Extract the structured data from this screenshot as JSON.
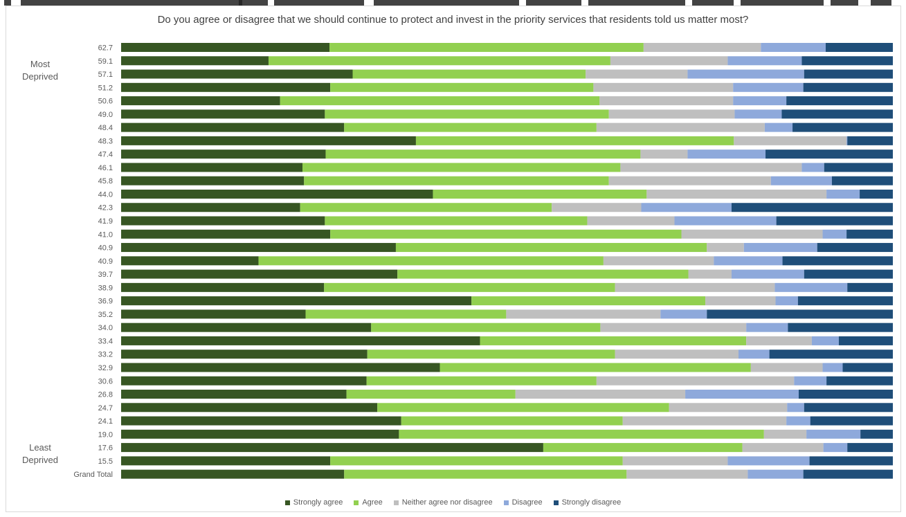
{
  "chart_data": {
    "type": "bar",
    "orientation": "horizontal",
    "stacked": "100%",
    "title": "Do you agree or disagree that we should continue to protect and invest in the priority services that residents told us matter most?",
    "side_labels": {
      "top": "Most Deprived",
      "bottom": "Least Deprived"
    },
    "categories": [
      "62.7",
      "59.1",
      "57.1",
      "51.2",
      "50.6",
      "49.0",
      "48.4",
      "48.3",
      "47.4",
      "46.1",
      "45.8",
      "44.0",
      "42.3",
      "41.9",
      "41.0",
      "40.9",
      "40.9",
      "39.7",
      "38.9",
      "36.9",
      "35.2",
      "34.0",
      "33.4",
      "33.2",
      "32.9",
      "30.6",
      "26.8",
      "24.7",
      "24.1",
      "19.0",
      "17.6",
      "15.5",
      "Grand Total"
    ],
    "series": [
      {
        "name": "Strongly agree",
        "color": "#375623",
        "values": [
          27.0,
          19.1,
          30.0,
          27.1,
          20.6,
          26.4,
          28.9,
          38.2,
          26.5,
          23.5,
          23.7,
          40.4,
          23.2,
          26.4,
          27.1,
          35.6,
          17.8,
          35.8,
          26.3,
          45.4,
          23.9,
          32.4,
          46.5,
          31.9,
          41.3,
          31.8,
          29.2,
          33.2,
          36.3,
          36.0,
          54.7,
          27.1,
          28.9
        ]
      },
      {
        "name": "Agree",
        "color": "#92D050",
        "values": [
          40.7,
          44.3,
          30.2,
          34.1,
          41.4,
          36.8,
          32.7,
          41.2,
          40.8,
          41.2,
          39.5,
          27.7,
          32.6,
          34.0,
          45.5,
          40.3,
          44.7,
          37.7,
          37.7,
          30.3,
          26.0,
          29.7,
          34.5,
          32.1,
          40.3,
          29.8,
          21.9,
          37.8,
          28.7,
          47.3,
          25.8,
          37.9,
          36.6
        ]
      },
      {
        "name": "Neither agree nor disagree",
        "color": "#BFBFBF",
        "values": [
          15.2,
          15.2,
          13.2,
          18.1,
          17.3,
          16.3,
          21.8,
          14.6,
          6.1,
          23.5,
          21.0,
          23.3,
          11.6,
          11.3,
          18.3,
          4.8,
          14.3,
          5.6,
          20.7,
          9.1,
          20.0,
          18.9,
          8.5,
          16.0,
          9.3,
          25.6,
          22.0,
          15.3,
          21.2,
          5.5,
          10.5,
          13.6,
          15.7
        ]
      },
      {
        "name": "Disagree",
        "color": "#8EA9DB",
        "values": [
          8.4,
          9.6,
          15.1,
          9.1,
          6.9,
          6.1,
          3.6,
          0.1,
          10.1,
          2.9,
          7.9,
          4.3,
          11.7,
          13.2,
          3.1,
          9.5,
          8.9,
          9.4,
          9.4,
          2.9,
          6.0,
          5.4,
          3.5,
          4.0,
          2.6,
          4.2,
          14.7,
          2.2,
          3.1,
          7.0,
          3.1,
          10.6,
          7.2
        ]
      },
      {
        "name": "Strongly disagree",
        "color": "#1F4E79",
        "values": [
          8.7,
          11.8,
          11.5,
          11.6,
          13.8,
          14.4,
          13.0,
          5.9,
          16.5,
          8.9,
          7.9,
          4.3,
          20.9,
          15.1,
          6.0,
          9.8,
          14.3,
          11.5,
          5.9,
          12.3,
          24.1,
          13.6,
          7.0,
          16.0,
          6.5,
          8.6,
          12.2,
          11.5,
          10.7,
          4.2,
          5.9,
          10.8,
          11.6
        ]
      }
    ],
    "xlim": [
      0,
      100
    ],
    "grid": false,
    "legend_position": "bottom"
  }
}
